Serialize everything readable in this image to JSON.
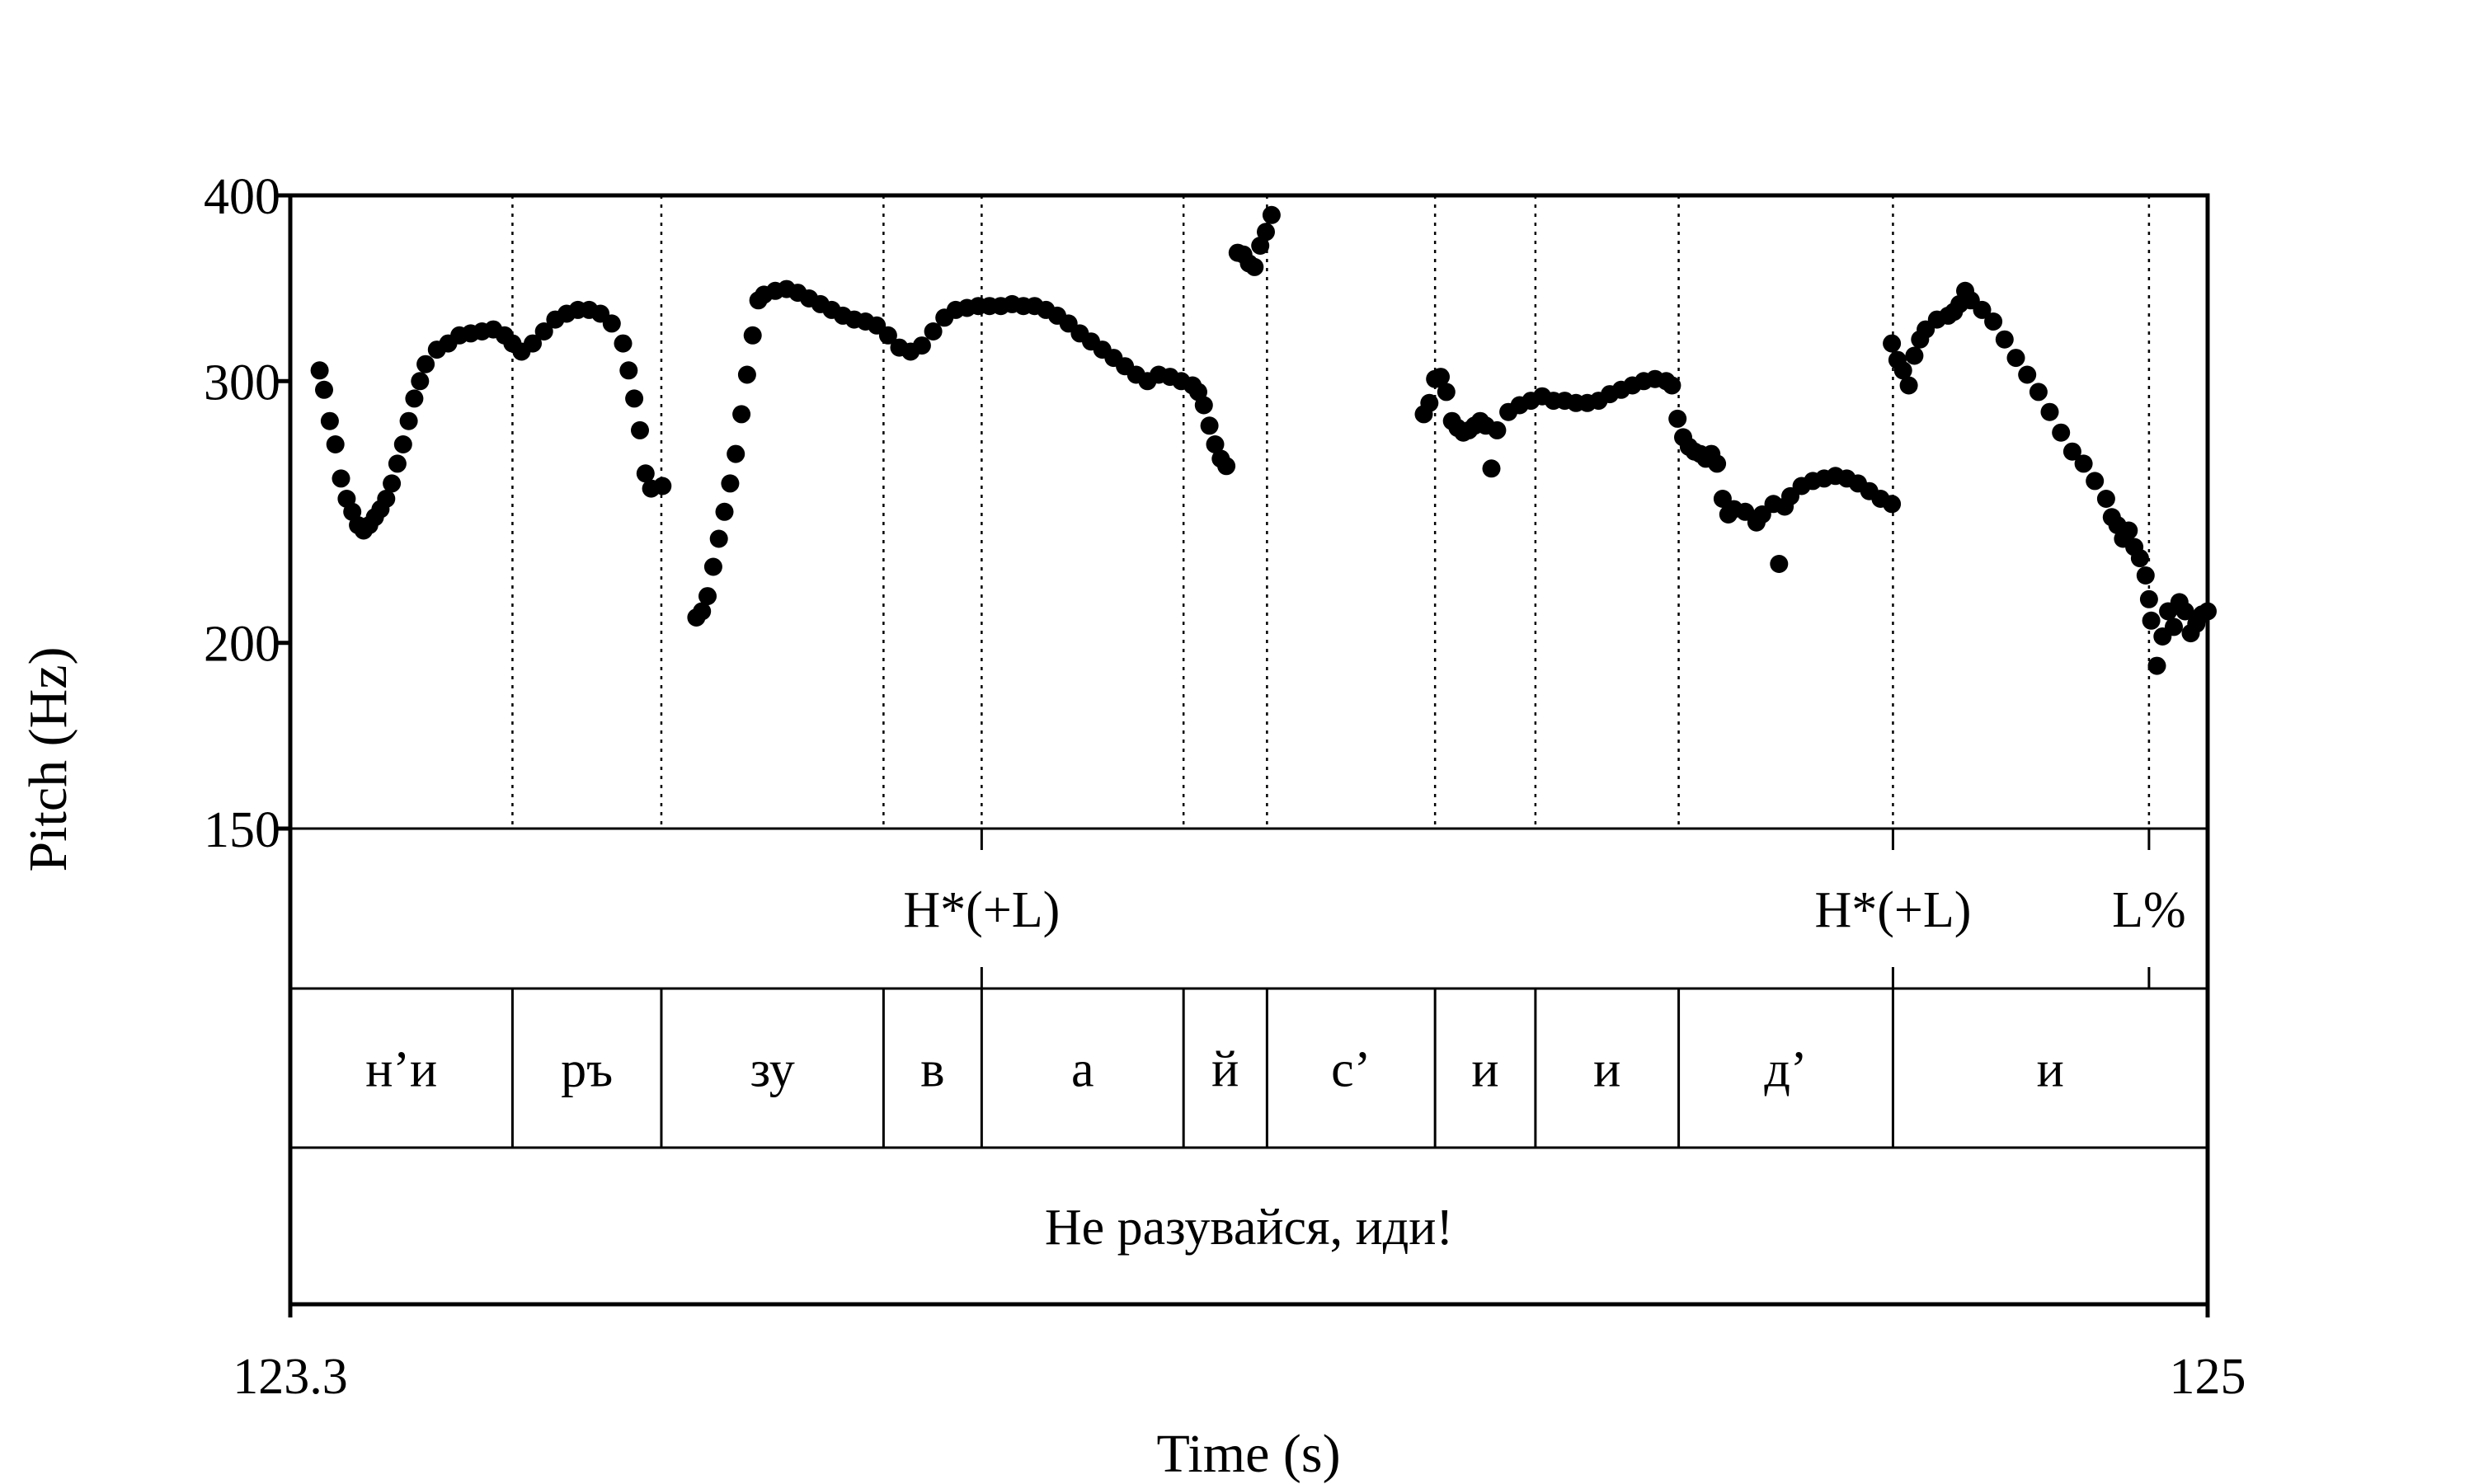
{
  "chart_data": {
    "type": "scatter",
    "xlabel": "Time (s)",
    "ylabel": "Pitch (Hz)",
    "xlim": [
      123.3,
      125
    ],
    "ylim": [
      150,
      400
    ],
    "y_scale": "log",
    "x_tick_labels": [
      "123.3",
      "125"
    ],
    "y_ticks": [
      150,
      200,
      300,
      400
    ],
    "y_tick_labels": [
      "150",
      "200",
      "300",
      "400"
    ],
    "grid": false,
    "point_color": "#000000",
    "segment_boundaries": [
      123.497,
      123.629,
      123.826,
      123.913,
      124.092,
      124.166,
      124.315,
      124.404,
      124.531,
      124.721,
      124.948
    ],
    "tiers": {
      "tones": [
        {
          "label": "H*(+L)",
          "time": 123.913
        },
        {
          "label": "H*(+L)",
          "time": 124.721
        },
        {
          "label": "L%",
          "time": 124.948
        }
      ],
      "syllables": [
        {
          "label": "н’и",
          "start": 123.3,
          "end": 123.497
        },
        {
          "label": "ръ",
          "start": 123.497,
          "end": 123.629
        },
        {
          "label": "зу",
          "start": 123.629,
          "end": 123.826
        },
        {
          "label": "в",
          "start": 123.826,
          "end": 123.913
        },
        {
          "label": "а",
          "start": 123.913,
          "end": 124.092
        },
        {
          "label": "й",
          "start": 124.092,
          "end": 124.166
        },
        {
          "label": "с’",
          "start": 124.166,
          "end": 124.315
        },
        {
          "label": "и",
          "start": 124.315,
          "end": 124.404
        },
        {
          "label": "и",
          "start": 124.404,
          "end": 124.531
        },
        {
          "label": "д’",
          "start": 124.531,
          "end": 124.721
        },
        {
          "label": "и",
          "start": 124.721,
          "end": 125.0
        }
      ],
      "sentence": {
        "label": "Не разувайся, иди!",
        "start": 123.3,
        "end": 125.0
      }
    },
    "series": [
      {
        "points": [
          [
            123.326,
            305
          ],
          [
            123.33,
            296
          ],
          [
            123.335,
            282
          ],
          [
            123.34,
            272
          ],
          [
            123.345,
            258
          ],
          [
            123.35,
            250
          ],
          [
            123.355,
            245
          ],
          [
            123.36,
            240
          ],
          [
            123.365,
            238
          ],
          [
            123.37,
            240
          ],
          [
            123.375,
            243
          ],
          [
            123.38,
            246
          ],
          [
            123.385,
            250
          ],
          [
            123.39,
            256
          ],
          [
            123.395,
            264
          ],
          [
            123.4,
            272
          ],
          [
            123.405,
            282
          ],
          [
            123.41,
            292
          ],
          [
            123.415,
            300
          ],
          [
            123.42,
            308
          ],
          [
            123.43,
            315
          ],
          [
            123.44,
            318
          ],
          [
            123.45,
            322
          ],
          [
            123.46,
            323
          ],
          [
            123.47,
            324
          ],
          [
            123.48,
            325
          ],
          [
            123.49,
            322
          ],
          [
            123.497,
            318
          ],
          [
            123.505,
            314
          ],
          [
            123.515,
            318
          ],
          [
            123.525,
            324
          ],
          [
            123.535,
            330
          ],
          [
            123.545,
            333
          ],
          [
            123.555,
            335
          ],
          [
            123.565,
            335
          ],
          [
            123.575,
            333
          ],
          [
            123.585,
            328
          ],
          [
            123.595,
            318
          ],
          [
            123.6,
            305
          ],
          [
            123.605,
            292
          ],
          [
            123.61,
            278
          ],
          [
            123.615,
            260
          ],
          [
            123.62,
            254
          ],
          [
            123.63,
            255
          ]
        ]
      },
      {
        "points": [
          [
            123.66,
            208
          ],
          [
            123.665,
            210
          ],
          [
            123.67,
            215
          ],
          [
            123.675,
            225
          ],
          [
            123.68,
            235
          ],
          [
            123.685,
            245
          ],
          [
            123.69,
            256
          ],
          [
            123.695,
            268
          ],
          [
            123.7,
            285
          ],
          [
            123.705,
            303
          ],
          [
            123.71,
            322
          ],
          [
            123.715,
            340
          ],
          [
            123.72,
            343
          ],
          [
            123.73,
            345
          ],
          [
            123.74,
            346
          ],
          [
            123.75,
            344
          ],
          [
            123.76,
            341
          ],
          [
            123.77,
            338
          ],
          [
            123.78,
            335
          ],
          [
            123.79,
            332
          ],
          [
            123.8,
            330
          ],
          [
            123.81,
            329
          ],
          [
            123.82,
            327
          ],
          [
            123.83,
            322
          ],
          [
            123.84,
            316
          ],
          [
            123.85,
            314
          ],
          [
            123.86,
            317
          ],
          [
            123.87,
            324
          ],
          [
            123.88,
            331
          ],
          [
            123.89,
            335
          ],
          [
            123.9,
            336
          ],
          [
            123.91,
            337
          ],
          [
            123.92,
            337
          ],
          [
            123.93,
            337
          ],
          [
            123.94,
            338
          ],
          [
            123.95,
            337
          ],
          [
            123.96,
            337
          ],
          [
            123.97,
            335
          ],
          [
            123.98,
            332
          ],
          [
            123.99,
            328
          ],
          [
            124.0,
            323
          ],
          [
            124.01,
            319
          ],
          [
            124.02,
            315
          ],
          [
            124.03,
            311
          ],
          [
            124.04,
            307
          ],
          [
            124.05,
            303
          ],
          [
            124.06,
            300
          ],
          [
            124.07,
            303
          ],
          [
            124.08,
            302
          ],
          [
            124.09,
            300
          ],
          [
            124.1,
            298
          ],
          [
            124.105,
            295
          ],
          [
            124.11,
            289
          ],
          [
            124.115,
            280
          ],
          [
            124.12,
            272
          ],
          [
            124.125,
            266
          ],
          [
            124.13,
            263
          ]
        ]
      },
      {
        "points": [
          [
            124.14,
            366
          ],
          [
            124.145,
            365
          ],
          [
            124.15,
            360
          ],
          [
            124.155,
            358
          ],
          [
            124.16,
            370
          ],
          [
            124.165,
            378
          ],
          [
            124.17,
            388
          ]
        ]
      },
      {
        "points": [
          [
            124.305,
            285
          ],
          [
            124.31,
            290
          ],
          [
            124.315,
            301
          ],
          [
            124.32,
            302
          ],
          [
            124.325,
            295
          ],
          [
            124.33,
            282
          ],
          [
            124.335,
            279
          ],
          [
            124.34,
            277
          ],
          [
            124.345,
            278
          ],
          [
            124.35,
            280
          ],
          [
            124.355,
            282
          ],
          [
            124.36,
            280
          ],
          [
            124.365,
            262
          ],
          [
            124.37,
            278
          ],
          [
            124.38,
            286
          ],
          [
            124.39,
            289
          ],
          [
            124.4,
            291
          ],
          [
            124.41,
            293
          ],
          [
            124.42,
            291
          ],
          [
            124.43,
            291
          ],
          [
            124.44,
            290
          ],
          [
            124.45,
            290
          ],
          [
            124.46,
            291
          ],
          [
            124.47,
            294
          ],
          [
            124.48,
            296
          ],
          [
            124.49,
            298
          ],
          [
            124.5,
            300
          ],
          [
            124.51,
            301
          ],
          [
            124.52,
            300
          ],
          [
            124.525,
            298
          ],
          [
            124.53,
            283
          ],
          [
            124.535,
            275
          ],
          [
            124.54,
            271
          ],
          [
            124.545,
            269
          ],
          [
            124.55,
            268
          ],
          [
            124.555,
            266
          ],
          [
            124.56,
            268
          ],
          [
            124.565,
            264
          ],
          [
            124.57,
            250
          ],
          [
            124.575,
            244
          ],
          [
            124.58,
            246
          ],
          [
            124.59,
            245
          ],
          [
            124.6,
            241
          ],
          [
            124.605,
            244
          ],
          [
            124.615,
            248
          ],
          [
            124.62,
            226
          ],
          [
            124.625,
            247
          ],
          [
            124.63,
            251
          ],
          [
            124.64,
            255
          ],
          [
            124.65,
            257
          ],
          [
            124.66,
            258
          ],
          [
            124.67,
            259
          ],
          [
            124.68,
            258
          ],
          [
            124.69,
            256
          ],
          [
            124.7,
            253
          ],
          [
            124.71,
            250
          ],
          [
            124.72,
            248
          ]
        ]
      },
      {
        "points": [
          [
            124.72,
            318
          ],
          [
            124.725,
            310
          ],
          [
            124.73,
            305
          ],
          [
            124.735,
            298
          ],
          [
            124.74,
            312
          ],
          [
            124.745,
            320
          ],
          [
            124.75,
            325
          ],
          [
            124.76,
            330
          ],
          [
            124.77,
            332
          ],
          [
            124.775,
            334
          ],
          [
            124.78,
            338
          ],
          [
            124.785,
            345
          ],
          [
            124.79,
            340
          ],
          [
            124.8,
            335
          ],
          [
            124.81,
            329
          ],
          [
            124.82,
            320
          ],
          [
            124.83,
            311
          ],
          [
            124.84,
            303
          ],
          [
            124.85,
            295
          ],
          [
            124.86,
            286
          ],
          [
            124.87,
            277
          ],
          [
            124.88,
            269
          ],
          [
            124.89,
            264
          ],
          [
            124.9,
            257
          ],
          [
            124.91,
            250
          ],
          [
            124.915,
            243
          ],
          [
            124.92,
            240
          ],
          [
            124.925,
            235
          ],
          [
            124.93,
            238
          ],
          [
            124.935,
            232
          ],
          [
            124.94,
            228
          ],
          [
            124.945,
            222
          ],
          [
            124.948,
            214
          ],
          [
            124.95,
            207
          ],
          [
            124.955,
            193
          ],
          [
            124.96,
            202
          ],
          [
            124.965,
            210
          ],
          [
            124.97,
            205
          ],
          [
            124.975,
            213
          ],
          [
            124.98,
            210
          ],
          [
            124.985,
            203
          ],
          [
            124.99,
            206
          ],
          [
            124.995,
            209
          ],
          [
            125.0,
            210
          ]
        ]
      }
    ]
  }
}
